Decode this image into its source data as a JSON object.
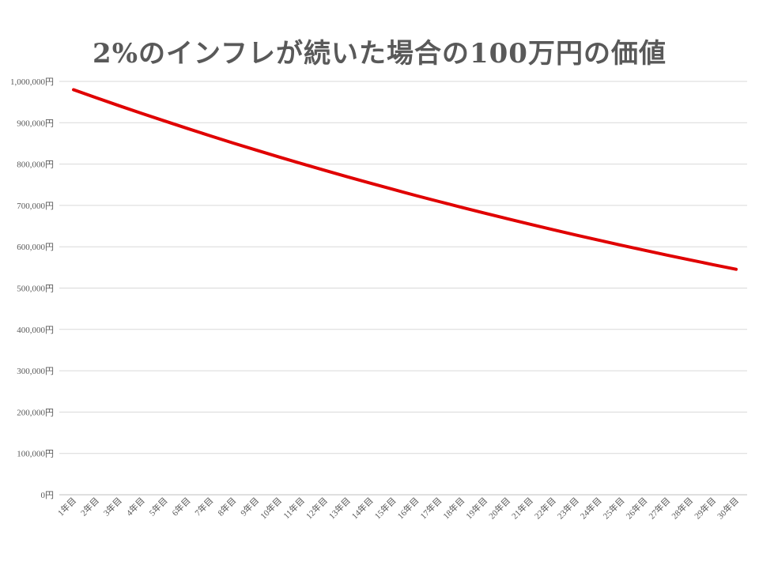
{
  "chart_data": {
    "type": "line",
    "title": "2%のインフレが続いた場合の100万円の価値",
    "xlabel": "",
    "ylabel": "",
    "ylim": [
      0,
      1000000
    ],
    "yticks": [
      {
        "value": 0,
        "label": "0円"
      },
      {
        "value": 100000,
        "label": "100,000円"
      },
      {
        "value": 200000,
        "label": "200,000円"
      },
      {
        "value": 300000,
        "label": "300,000円"
      },
      {
        "value": 400000,
        "label": "400,000円"
      },
      {
        "value": 500000,
        "label": "500,000円"
      },
      {
        "value": 600000,
        "label": "600,000円"
      },
      {
        "value": 700000,
        "label": "700,000円"
      },
      {
        "value": 800000,
        "label": "800,000円"
      },
      {
        "value": 900000,
        "label": "900,000円"
      },
      {
        "value": 1000000,
        "label": "1,000,000円"
      }
    ],
    "grid": true,
    "legend": "none",
    "line_color": "#e00000",
    "categories": [
      "1年目",
      "2年目",
      "3年目",
      "4年目",
      "5年目",
      "6年目",
      "7年目",
      "8年目",
      "9年目",
      "10年目",
      "11年目",
      "12年目",
      "13年目",
      "14年目",
      "15年目",
      "16年目",
      "17年目",
      "18年目",
      "19年目",
      "20年目",
      "21年目",
      "22年目",
      "23年目",
      "24年目",
      "25年目",
      "26年目",
      "27年目",
      "28年目",
      "29年目",
      "30年目"
    ],
    "series": [
      {
        "values": [
          980000,
          960400,
          941192,
          922368,
          903921,
          885842,
          868126,
          850763,
          833748,
          817073,
          800731,
          784717,
          769022,
          753642,
          738569,
          723798,
          709322,
          695135,
          681233,
          667608,
          654256,
          641171,
          628347,
          615780,
          603465,
          591396,
          579568,
          567977,
          556617,
          545484
        ]
      }
    ]
  }
}
